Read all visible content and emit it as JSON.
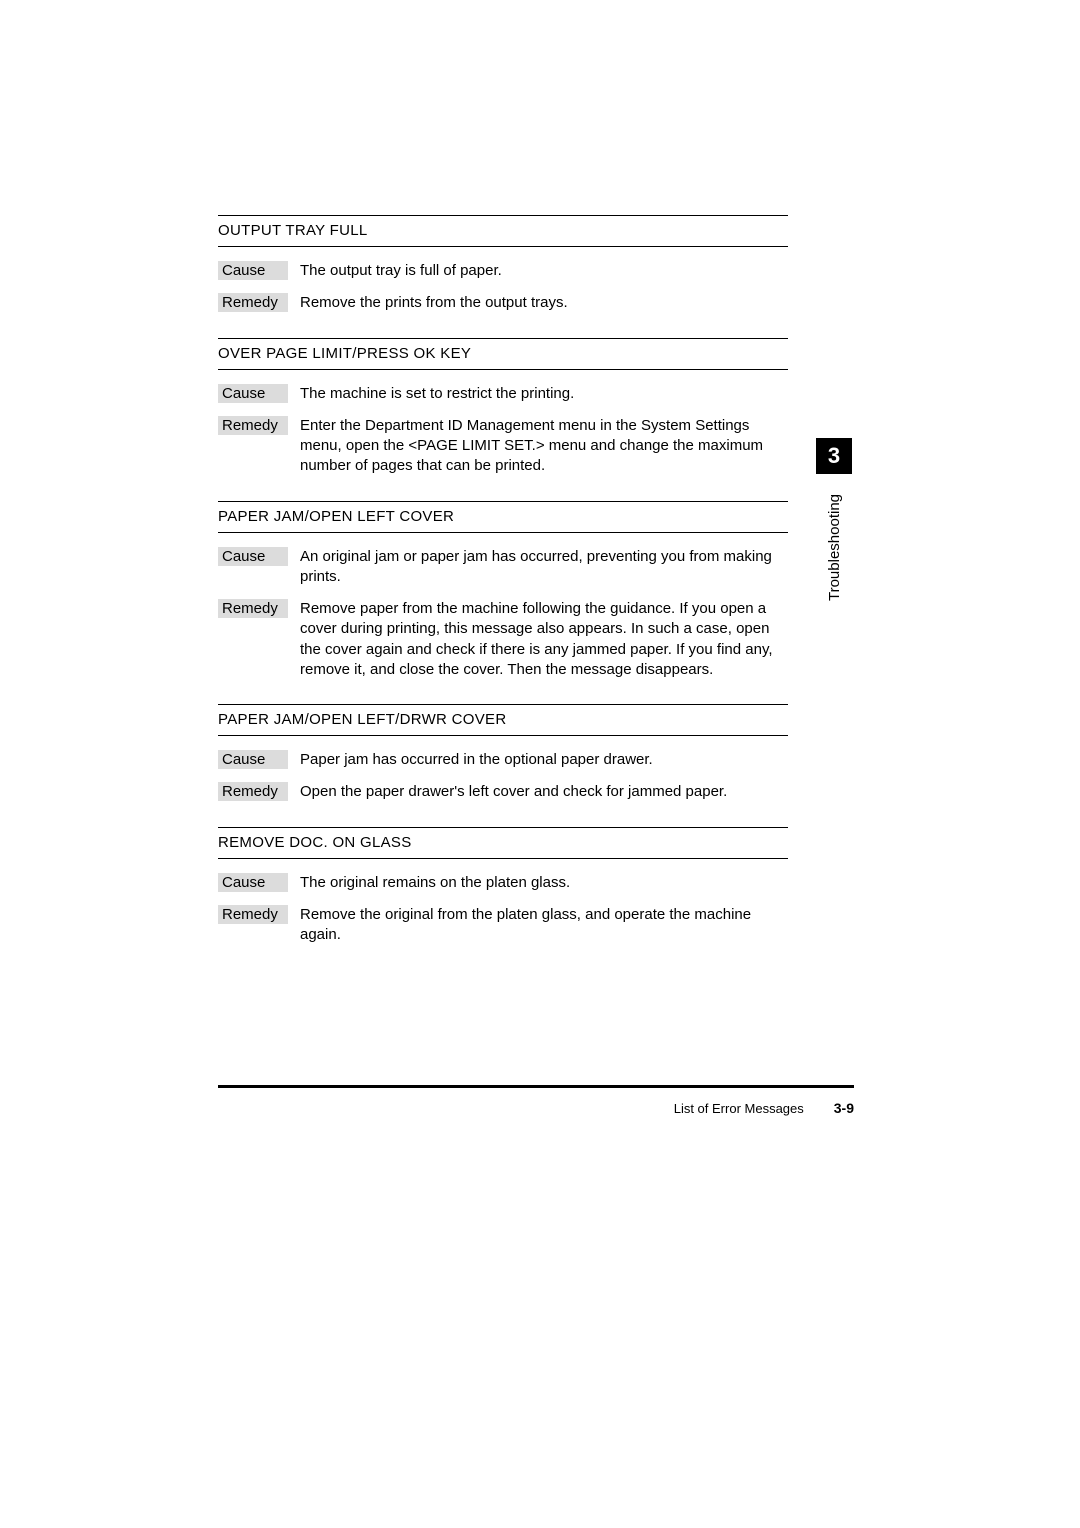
{
  "sideTab": {
    "number": "3",
    "label": "Troubleshooting"
  },
  "labels": {
    "cause": "Cause",
    "remedy": "Remedy"
  },
  "messages": [
    {
      "title": "OUTPUT TRAY FULL",
      "cause": "The output tray is full of paper.",
      "remedy": "Remove the prints from the output trays."
    },
    {
      "title": "OVER PAGE LIMIT/PRESS OK KEY",
      "cause": "The machine is set to restrict the printing.",
      "remedy": "Enter the Department ID Management menu in the System Settings menu, open the <PAGE LIMIT SET.> menu and change the maximum number of pages that can be printed."
    },
    {
      "title": "PAPER JAM/OPEN LEFT COVER",
      "cause": "An original jam or paper jam has occurred, preventing you from making prints.",
      "remedy": "Remove paper from the machine following the guidance. If you open a cover during printing, this message also appears. In such a case, open the cover again and check if there is any jammed paper. If you find any, remove it, and close the cover. Then the message disappears."
    },
    {
      "title": "PAPER JAM/OPEN LEFT/DRWR COVER",
      "cause": "Paper jam has occurred in the optional paper drawer.",
      "remedy": "Open the paper drawer's left cover and check for jammed paper."
    },
    {
      "title": "REMOVE DOC. ON GLASS",
      "cause": "The original remains on the platen glass.",
      "remedy": "Remove the original from the platen glass, and operate the machine again."
    }
  ],
  "footer": {
    "title": "List of Error Messages",
    "page": "3-9"
  },
  "colors": {
    "labelBg": "#dcdcdc",
    "text": "#000000",
    "background": "#ffffff",
    "tabBg": "#000000",
    "tabFg": "#ffffff"
  },
  "typography": {
    "body_fontsize": 15,
    "footer_fontsize": 13,
    "tab_number_fontsize": 22
  }
}
